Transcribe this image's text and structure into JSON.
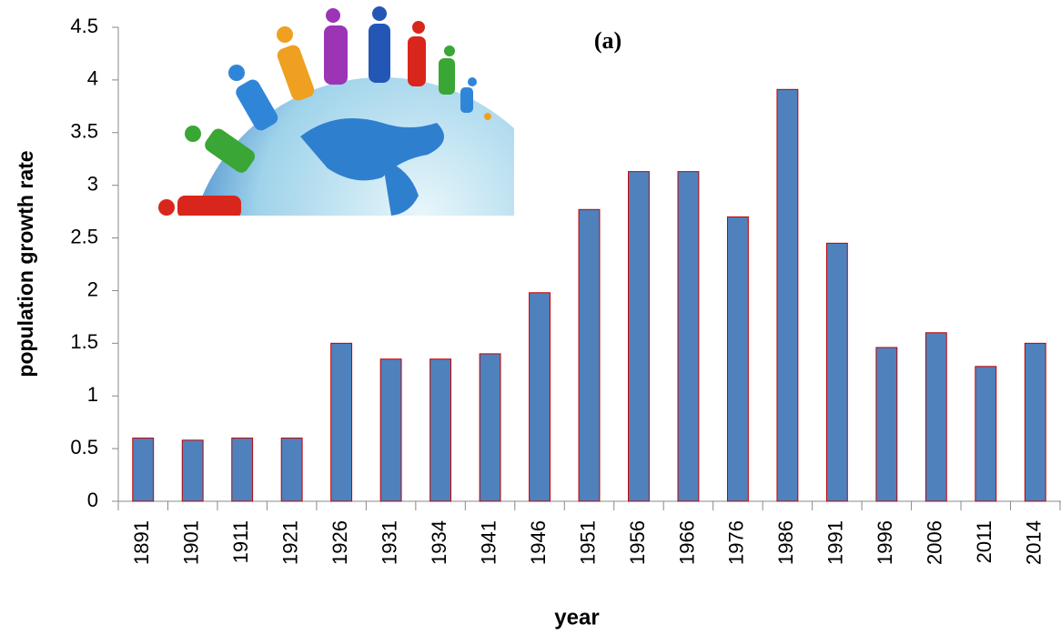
{
  "chart_data": {
    "type": "bar",
    "title": "(a)",
    "x_label": "year",
    "y_label": "population growth rate",
    "categories": [
      "1891",
      "1901",
      "1911",
      "1921",
      "1926",
      "1931",
      "1934",
      "1941",
      "1946",
      "1951",
      "1956",
      "1966",
      "1976",
      "1986",
      "1991",
      "1996",
      "2006",
      "2011",
      "2014"
    ],
    "values": [
      0.6,
      0.58,
      0.6,
      0.6,
      1.5,
      1.35,
      1.35,
      1.4,
      1.98,
      2.77,
      3.13,
      3.13,
      2.7,
      3.91,
      2.45,
      1.46,
      1.6,
      1.28,
      1.5
    ],
    "color": "#4f81bd",
    "edgecolor": "#c00000",
    "ylim": [
      0,
      4.5
    ],
    "yticks": [
      0,
      0.5,
      1,
      1.5,
      2,
      2.5,
      3,
      3.5,
      4,
      4.5
    ],
    "grid": false
  }
}
